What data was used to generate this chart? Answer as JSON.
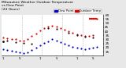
{
  "title": "Milwaukee Weather Outdoor Temperature\nvs Dew Point\n(24 Hours)",
  "bg_color": "#e8e8e8",
  "plot_bg": "#ffffff",
  "temp_x": [
    0,
    1,
    2,
    3,
    4,
    5,
    6,
    7,
    8,
    9,
    10,
    11,
    12,
    13,
    14,
    15,
    16,
    17,
    18,
    19,
    20,
    21,
    22,
    23
  ],
  "temp_y": [
    32,
    31,
    30,
    30,
    29,
    29,
    30,
    34,
    37,
    41,
    44,
    46,
    47,
    46,
    44,
    42,
    40,
    38,
    36,
    35,
    34,
    34,
    35,
    55
  ],
  "dew_x": [
    0,
    1,
    2,
    3,
    4,
    5,
    6,
    7,
    8,
    9,
    10,
    11,
    12,
    13,
    14,
    15,
    16,
    17,
    18,
    19,
    20,
    21,
    22,
    23
  ],
  "dew_y": [
    18,
    17,
    16,
    15,
    14,
    13,
    14,
    17,
    20,
    23,
    26,
    28,
    30,
    29,
    27,
    25,
    23,
    21,
    20,
    19,
    18,
    19,
    20,
    21
  ],
  "black_x": [
    0,
    1,
    3,
    5,
    7,
    11,
    13,
    16,
    18,
    20,
    22
  ],
  "black_y": [
    28,
    29,
    27,
    26,
    25,
    44,
    43,
    38,
    35,
    33,
    32
  ],
  "hi_line_y": 55,
  "hi_line_x1": 21,
  "hi_line_x2": 23,
  "lo_dot_x": 0,
  "lo_dot_y": 28,
  "ylim": [
    10,
    60
  ],
  "xlim": [
    -0.5,
    24.5
  ],
  "yticks": [
    15,
    20,
    25,
    30,
    35,
    40,
    45,
    50,
    55,
    60
  ],
  "xtick_positions": [
    0,
    4,
    9,
    13,
    18,
    22
  ],
  "xtick_labels": [
    "1",
    "5",
    "1",
    "5",
    "1",
    "5"
  ],
  "vline_positions": [
    4.5,
    9.5,
    14.5,
    19.5
  ],
  "legend_blue_label": "Dew Point",
  "legend_red_label": "Outdoor Temp",
  "temp_color": "#dd0000",
  "dew_color": "#0000cc",
  "black_color": "#111111",
  "hi_color": "#ff0000",
  "grid_color": "#bbbbbb",
  "title_fontsize": 3.2,
  "tick_fontsize": 3.0,
  "legend_fontsize": 2.8,
  "dot_size": 2.5
}
